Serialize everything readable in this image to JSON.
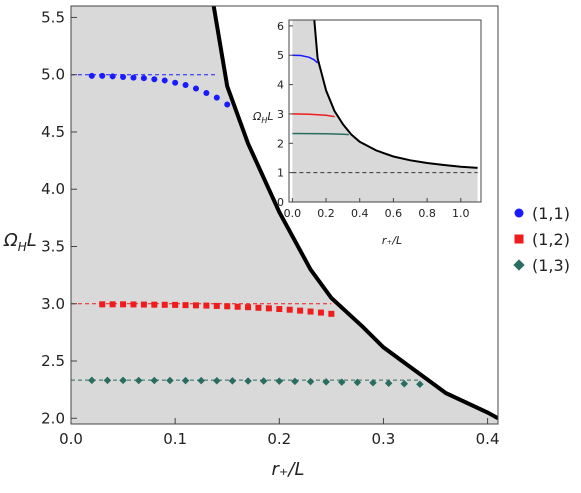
{
  "chart_data": [
    {
      "type": "scatter",
      "role": "main",
      "xlabel": "r₊/L",
      "ylabel": "ΩHL",
      "ylabel_main": "Ω",
      "ylabel_sub": "H",
      "ylabel_tail": "L",
      "xlim": [
        0.0,
        0.41
      ],
      "ylim": [
        1.95,
        5.6
      ],
      "xticks": [
        "0.0",
        "0.1",
        "0.2",
        "0.3",
        "0.4"
      ],
      "xtick_values": [
        0.0,
        0.1,
        0.2,
        0.3,
        0.4
      ],
      "yticks": [
        "2.0",
        "2.5",
        "3.0",
        "3.5",
        "4.0",
        "4.5",
        "5.0",
        "5.5"
      ],
      "ytick_values": [
        2.0,
        2.5,
        3.0,
        3.5,
        4.0,
        4.5,
        5.0,
        5.5
      ],
      "grid": false,
      "shaded_region": "below-boundary",
      "boundary_curve": {
        "x": [
          0.137,
          0.15,
          0.17,
          0.2,
          0.23,
          0.25,
          0.28,
          0.3,
          0.33,
          0.36,
          0.4,
          0.41
        ],
        "y": [
          5.6,
          4.9,
          4.4,
          3.8,
          3.3,
          3.05,
          2.8,
          2.62,
          2.42,
          2.22,
          2.05,
          2.0
        ]
      },
      "reference_lines": [
        {
          "series": "(1,1)",
          "y": 5.0,
          "x": [
            0.0,
            0.14
          ],
          "color": "#1a1aff"
        },
        {
          "series": "(1,2)",
          "y": 3.0,
          "x": [
            0.0,
            0.25
          ],
          "color": "#ee1c1c"
        },
        {
          "series": "(1,3)",
          "y": 2.333,
          "x": [
            0.0,
            0.335
          ],
          "color": "#2a6d60"
        }
      ],
      "series": [
        {
          "name": "(1,1)",
          "marker": "circle",
          "color": "#1a1aff",
          "x": [
            0.02,
            0.03,
            0.04,
            0.05,
            0.06,
            0.07,
            0.08,
            0.09,
            0.1,
            0.11,
            0.12,
            0.13,
            0.14,
            0.15
          ],
          "y": [
            4.99,
            4.99,
            4.985,
            4.98,
            4.975,
            4.97,
            4.96,
            4.95,
            4.93,
            4.91,
            4.88,
            4.84,
            4.8,
            4.74
          ]
        },
        {
          "name": "(1,2)",
          "marker": "square",
          "color": "#ee1c1c",
          "x": [
            0.03,
            0.04,
            0.05,
            0.06,
            0.07,
            0.08,
            0.09,
            0.1,
            0.11,
            0.12,
            0.13,
            0.14,
            0.15,
            0.16,
            0.17,
            0.18,
            0.19,
            0.2,
            0.21,
            0.22,
            0.23,
            0.24,
            0.25
          ],
          "y": [
            2.995,
            2.995,
            2.995,
            2.994,
            2.993,
            2.992,
            2.991,
            2.99,
            2.988,
            2.986,
            2.984,
            2.981,
            2.978,
            2.974,
            2.97,
            2.965,
            2.96,
            2.954,
            2.948,
            2.94,
            2.932,
            2.923,
            2.912
          ]
        },
        {
          "name": "(1,3)",
          "marker": "diamond",
          "color": "#2a6d60",
          "x": [
            0.02,
            0.035,
            0.05,
            0.065,
            0.08,
            0.095,
            0.11,
            0.125,
            0.14,
            0.155,
            0.17,
            0.185,
            0.2,
            0.215,
            0.23,
            0.245,
            0.26,
            0.275,
            0.29,
            0.305,
            0.32,
            0.335
          ],
          "y": [
            2.331,
            2.331,
            2.331,
            2.33,
            2.33,
            2.33,
            2.329,
            2.329,
            2.328,
            2.327,
            2.326,
            2.325,
            2.324,
            2.322,
            2.32,
            2.318,
            2.316,
            2.313,
            2.31,
            2.306,
            2.302,
            2.297
          ]
        }
      ],
      "legend": {
        "placement": "right",
        "entries": [
          {
            "label": "(1,1)",
            "marker": "circle",
            "color": "#1a1aff"
          },
          {
            "label": "(1,2)",
            "marker": "square",
            "color": "#ee1c1c"
          },
          {
            "label": "(1,3)",
            "marker": "diamond",
            "color": "#2a6d60"
          }
        ]
      }
    },
    {
      "type": "line",
      "role": "inset",
      "xlabel": "r₊/L",
      "ylabel": "ΩHL",
      "ylabel_main": "Ω",
      "ylabel_sub": "H",
      "ylabel_tail": "L",
      "xlim": [
        -0.02,
        1.12
      ],
      "ylim": [
        0.0,
        6.2
      ],
      "xticks": [
        "0.0",
        "0.2",
        "0.4",
        "0.6",
        "0.8",
        "1.0"
      ],
      "xtick_values": [
        0.0,
        0.2,
        0.4,
        0.6,
        0.8,
        1.0
      ],
      "yticks": [
        "0",
        "1",
        "2",
        "3",
        "4",
        "5",
        "6"
      ],
      "ytick_values": [
        0,
        1,
        2,
        3,
        4,
        5,
        6
      ],
      "grid": false,
      "shaded_region": "below-boundary",
      "boundary_curve": {
        "x": [
          0.13,
          0.15,
          0.2,
          0.25,
          0.3,
          0.35,
          0.4,
          0.5,
          0.6,
          0.7,
          0.8,
          0.9,
          1.0,
          1.1
        ],
        "y": [
          6.2,
          4.9,
          3.8,
          3.1,
          2.65,
          2.3,
          2.05,
          1.75,
          1.55,
          1.42,
          1.33,
          1.26,
          1.2,
          1.16
        ]
      },
      "reference_line": {
        "y": 1.0,
        "x": [
          0.0,
          1.1
        ],
        "style": "dashed",
        "color": "#333333"
      },
      "series": [
        {
          "name": "(1,1)",
          "color": "#1a1aff",
          "x": [
            0.0,
            0.05,
            0.1,
            0.13,
            0.15
          ],
          "y": [
            5.0,
            4.99,
            4.93,
            4.84,
            4.74
          ]
        },
        {
          "name": "(1,2)",
          "color": "#ee1c1c",
          "x": [
            0.0,
            0.1,
            0.2,
            0.25
          ],
          "y": [
            3.0,
            2.99,
            2.955,
            2.91
          ]
        },
        {
          "name": "(1,3)",
          "color": "#2a6d60",
          "x": [
            0.0,
            0.1,
            0.2,
            0.3,
            0.335
          ],
          "y": [
            2.333,
            2.329,
            2.324,
            2.306,
            2.297
          ]
        }
      ]
    }
  ]
}
